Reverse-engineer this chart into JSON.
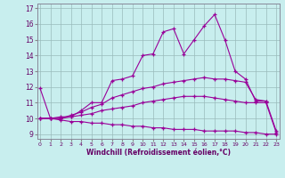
{
  "xlabel": "Windchill (Refroidissement éolien,°C)",
  "bg_color": "#c8eeee",
  "line_color": "#990099",
  "marker": "+",
  "x_ticks": [
    0,
    1,
    2,
    3,
    4,
    5,
    6,
    7,
    8,
    9,
    10,
    11,
    12,
    13,
    14,
    15,
    16,
    17,
    18,
    19,
    20,
    21,
    22,
    23
  ],
  "y_ticks": [
    9,
    10,
    11,
    12,
    13,
    14,
    15,
    16,
    17
  ],
  "ylim": [
    8.7,
    17.3
  ],
  "xlim": [
    -0.3,
    23.3
  ],
  "curves": [
    {
      "x": [
        0,
        1,
        2,
        3,
        4,
        5,
        6,
        7,
        8,
        9,
        10,
        11,
        12,
        13,
        14,
        15,
        16,
        17,
        18,
        19,
        20,
        21,
        22
      ],
      "y": [
        11.9,
        10.0,
        10.1,
        10.1,
        10.5,
        11.0,
        11.0,
        12.4,
        12.5,
        12.7,
        14.0,
        14.1,
        15.5,
        15.7,
        14.1,
        15.0,
        15.9,
        16.6,
        15.0,
        13.0,
        12.5,
        11.1,
        11.1
      ]
    },
    {
      "x": [
        0,
        1,
        2,
        3,
        4,
        5,
        6,
        7,
        8,
        9,
        10,
        11,
        12,
        13,
        14,
        15,
        16,
        17,
        18,
        19,
        20,
        21,
        22,
        23
      ],
      "y": [
        10.0,
        10.0,
        10.0,
        10.2,
        10.4,
        10.7,
        10.9,
        11.3,
        11.5,
        11.7,
        11.9,
        12.0,
        12.2,
        12.3,
        12.4,
        12.5,
        12.6,
        12.5,
        12.5,
        12.4,
        12.3,
        11.2,
        11.1,
        9.2
      ]
    },
    {
      "x": [
        0,
        1,
        2,
        3,
        4,
        5,
        6,
        7,
        8,
        9,
        10,
        11,
        12,
        13,
        14,
        15,
        16,
        17,
        18,
        19,
        20,
        21,
        22,
        23
      ],
      "y": [
        10.0,
        10.0,
        10.0,
        10.1,
        10.2,
        10.3,
        10.5,
        10.6,
        10.7,
        10.8,
        11.0,
        11.1,
        11.2,
        11.3,
        11.4,
        11.4,
        11.4,
        11.3,
        11.2,
        11.1,
        11.0,
        11.0,
        11.0,
        9.1
      ]
    },
    {
      "x": [
        0,
        1,
        2,
        3,
        4,
        5,
        6,
        7,
        8,
        9,
        10,
        11,
        12,
        13,
        14,
        15,
        16,
        17,
        18,
        19,
        20,
        21,
        22,
        23
      ],
      "y": [
        10.0,
        10.0,
        9.9,
        9.8,
        9.8,
        9.7,
        9.7,
        9.6,
        9.6,
        9.5,
        9.5,
        9.4,
        9.4,
        9.3,
        9.3,
        9.3,
        9.2,
        9.2,
        9.2,
        9.2,
        9.1,
        9.1,
        9.0,
        9.0
      ]
    }
  ]
}
